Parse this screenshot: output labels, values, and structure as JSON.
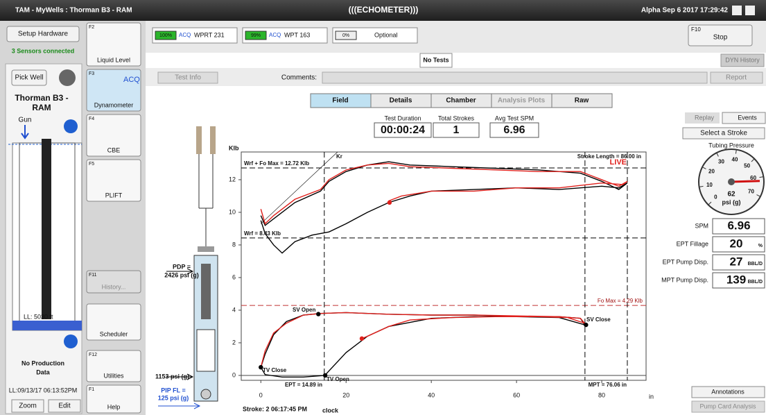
{
  "title_bar": {
    "title": "TAM - MyWells : Thorman B3 - RAM",
    "logo": "(((ECHOMETER)))",
    "status": "Alpha Sep  6 2017 17:29:42"
  },
  "left_panel": {
    "setup": "Setup Hardware",
    "sensors": "3 Sensors connected",
    "pick_well": "Pick Well",
    "well_name": [
      "Thorman B3 -",
      "RAM"
    ],
    "gun": "Gun",
    "ll": "LL: 5030 ft",
    "production": [
      "No Production",
      "Data"
    ],
    "timestamp": "LL:09/13/17 06:13:52PM",
    "zoom": "Zoom",
    "edit": "Edit"
  },
  "tools": [
    {
      "key": "F2",
      "label": "Liquid Level"
    },
    {
      "key": "F3",
      "label": "Dynamometer",
      "tag": "ACQ"
    },
    {
      "key": "F4",
      "label": "CBE"
    },
    {
      "key": "F5",
      "label": "PLIFT"
    },
    {
      "key": "F11",
      "label": "History..."
    },
    {
      "label": "Scheduler"
    },
    {
      "key": "F12",
      "label": "Utilities"
    },
    {
      "key": "F1",
      "label": "Help"
    }
  ],
  "sensor_bar": {
    "acq": "ACQ",
    "sensors": [
      {
        "battery": "100%",
        "name": "WPRT 231"
      },
      {
        "battery": "99%",
        "name": "WPT 163"
      },
      {
        "battery": "0%",
        "name": "Optional"
      }
    ],
    "f10": {
      "key": "F10",
      "label": "Stop"
    }
  },
  "tab": "No Tests",
  "dyn_history": "DYN History",
  "toolbar": {
    "test_info": "Test Info",
    "comments": "Comments:",
    "report": "Report"
  },
  "tabs": [
    "Field",
    "Details",
    "Chamber",
    "Analysis Plots",
    "Raw"
  ],
  "summary": [
    {
      "label": "Test Duration",
      "value": "00:00:24"
    },
    {
      "label": "Total Strokes",
      "value": "1"
    },
    {
      "label": "Avg Test SPM",
      "value": "6.96"
    }
  ],
  "well_diagram": {
    "pdp": [
      "PDP =",
      "2426 psi (g)"
    ],
    "pip": "1153 psi (g)",
    "pip_fl": [
      "PIP FL =",
      "125 psi (g)"
    ]
  },
  "card": {
    "y_unit": "Klb",
    "x_unit": "in",
    "xlim": [
      -4.6,
      90.4
    ],
    "ylim": [
      -0.3,
      13.7
    ],
    "xticks": [
      0,
      20,
      40,
      60,
      80
    ],
    "yticks": [
      0,
      2,
      4,
      6,
      8,
      10,
      12
    ],
    "hlines": [
      12.72,
      8.43,
      4.29
    ],
    "vlines": [
      14.89,
      76.06,
      86
    ],
    "annotations": {
      "wrf_fo": "Wrf + Fo Max = 12.72 Klb",
      "kr": "Kr",
      "stroke_length": "Stroke Length = 86.00 in",
      "live": "LIVE",
      "wrf": "Wrf = 8.43 Klb",
      "fo_max": "Fo Max = 4.29 Klb",
      "sv_open": "SV Open",
      "sv_close": "SV Close",
      "tv_close": "TV Close",
      "tv_open": "TV Open",
      "ept": "EPT = 14.89 in",
      "mpt": "MPT = 76.06 in"
    },
    "series": [
      {
        "color": "#000000",
        "x": [
          0,
          1,
          3,
          5,
          8,
          12,
          16,
          20,
          25,
          30,
          35,
          40,
          50,
          60,
          70,
          80,
          84,
          86,
          84,
          80,
          75,
          65,
          55,
          45,
          35,
          30,
          25,
          20,
          16,
          14,
          8,
          3,
          1,
          0
        ],
        "y": [
          9.5,
          8.7,
          8.0,
          7.5,
          8.2,
          8.6,
          8.8,
          9.3,
          10.0,
          10.6,
          11.0,
          11.3,
          11.4,
          11.5,
          11.4,
          11.6,
          11.5,
          11.8,
          11.4,
          11.9,
          12.4,
          12.6,
          12.7,
          12.8,
          12.9,
          13.1,
          12.9,
          12.5,
          11.9,
          11.3,
          10.6,
          9.6,
          9.2,
          9.8
        ]
      },
      {
        "color": "#e0201c",
        "x": [
          0,
          1,
          3,
          8,
          14,
          16,
          20,
          25,
          30,
          35,
          45,
          55,
          65,
          75,
          80,
          84,
          86,
          85,
          80,
          70,
          60,
          50,
          40,
          33,
          30
        ],
        "y": [
          10.2,
          9.3,
          9.8,
          10.8,
          11.4,
          12.0,
          12.6,
          12.9,
          13.0,
          12.8,
          12.7,
          12.6,
          12.5,
          12.5,
          12.0,
          11.6,
          11.9,
          11.7,
          11.8,
          11.5,
          11.5,
          11.3,
          11.3,
          11.0,
          10.7
        ]
      },
      {
        "color": "#000000",
        "x": [
          0,
          1,
          5,
          10,
          15,
          20,
          25,
          30,
          40,
          50,
          60,
          70,
          76,
          75,
          70,
          60,
          50,
          40,
          30,
          20,
          14,
          10,
          6,
          3,
          1,
          0
        ],
        "y": [
          0.5,
          0.05,
          -0.1,
          -0.1,
          0,
          1.4,
          2.4,
          3.0,
          3.5,
          3.6,
          3.6,
          3.55,
          3.1,
          3.5,
          3.6,
          3.6,
          3.7,
          3.7,
          3.75,
          3.85,
          3.8,
          3.7,
          3.3,
          2.5,
          1.3,
          0.5
        ]
      },
      {
        "color": "#e0201c",
        "x": [
          0,
          1,
          3,
          6,
          10,
          14,
          20,
          30,
          40,
          50,
          60,
          70,
          75,
          76,
          72,
          65,
          55,
          45,
          35,
          30,
          25,
          23.7
        ],
        "y": [
          0.5,
          1.5,
          2.6,
          3.2,
          3.7,
          3.8,
          3.85,
          3.75,
          3.7,
          3.7,
          3.65,
          3.6,
          3.5,
          3.2,
          3.55,
          3.6,
          3.6,
          3.55,
          3.4,
          3.0,
          2.4,
          2.26
        ]
      }
    ],
    "points": [
      {
        "x": 30.2,
        "y": 10.6,
        "color": "#e0201c"
      },
      {
        "x": 23.7,
        "y": 2.26,
        "color": "#e0201c"
      },
      {
        "x": 13.5,
        "y": 3.76,
        "color": "#000000"
      },
      {
        "x": 76.3,
        "y": 3.1,
        "color": "#000000"
      },
      {
        "x": 0,
        "y": 0.5,
        "color": "#000000"
      },
      {
        "x": 15.1,
        "y": 0,
        "color": "#000000"
      }
    ]
  },
  "footer": {
    "stroke": "Stroke: 2  06:17:45 PM",
    "clock": "clock"
  },
  "right_panel": {
    "replay": "Replay",
    "events": "Events",
    "select": "Select a Stroke",
    "gauge": {
      "title": "Tubing Pressure",
      "value": 62,
      "unit": "psi (g)",
      "ticks": [
        0,
        10,
        20,
        30,
        40,
        50,
        60,
        70
      ]
    },
    "readouts": [
      {
        "label": "SPM",
        "value": "6.96"
      },
      {
        "label": "EPT Fillage",
        "value": "20",
        "unit": "%"
      },
      {
        "label": "EPT Pump Disp.",
        "value": "27",
        "unit": "BBL/D"
      },
      {
        "label": "MPT Pump Disp.",
        "value": "139",
        "unit": "BBL/D"
      }
    ],
    "annotations": "Annotations",
    "pump_card": "Pump Card Analysis"
  }
}
